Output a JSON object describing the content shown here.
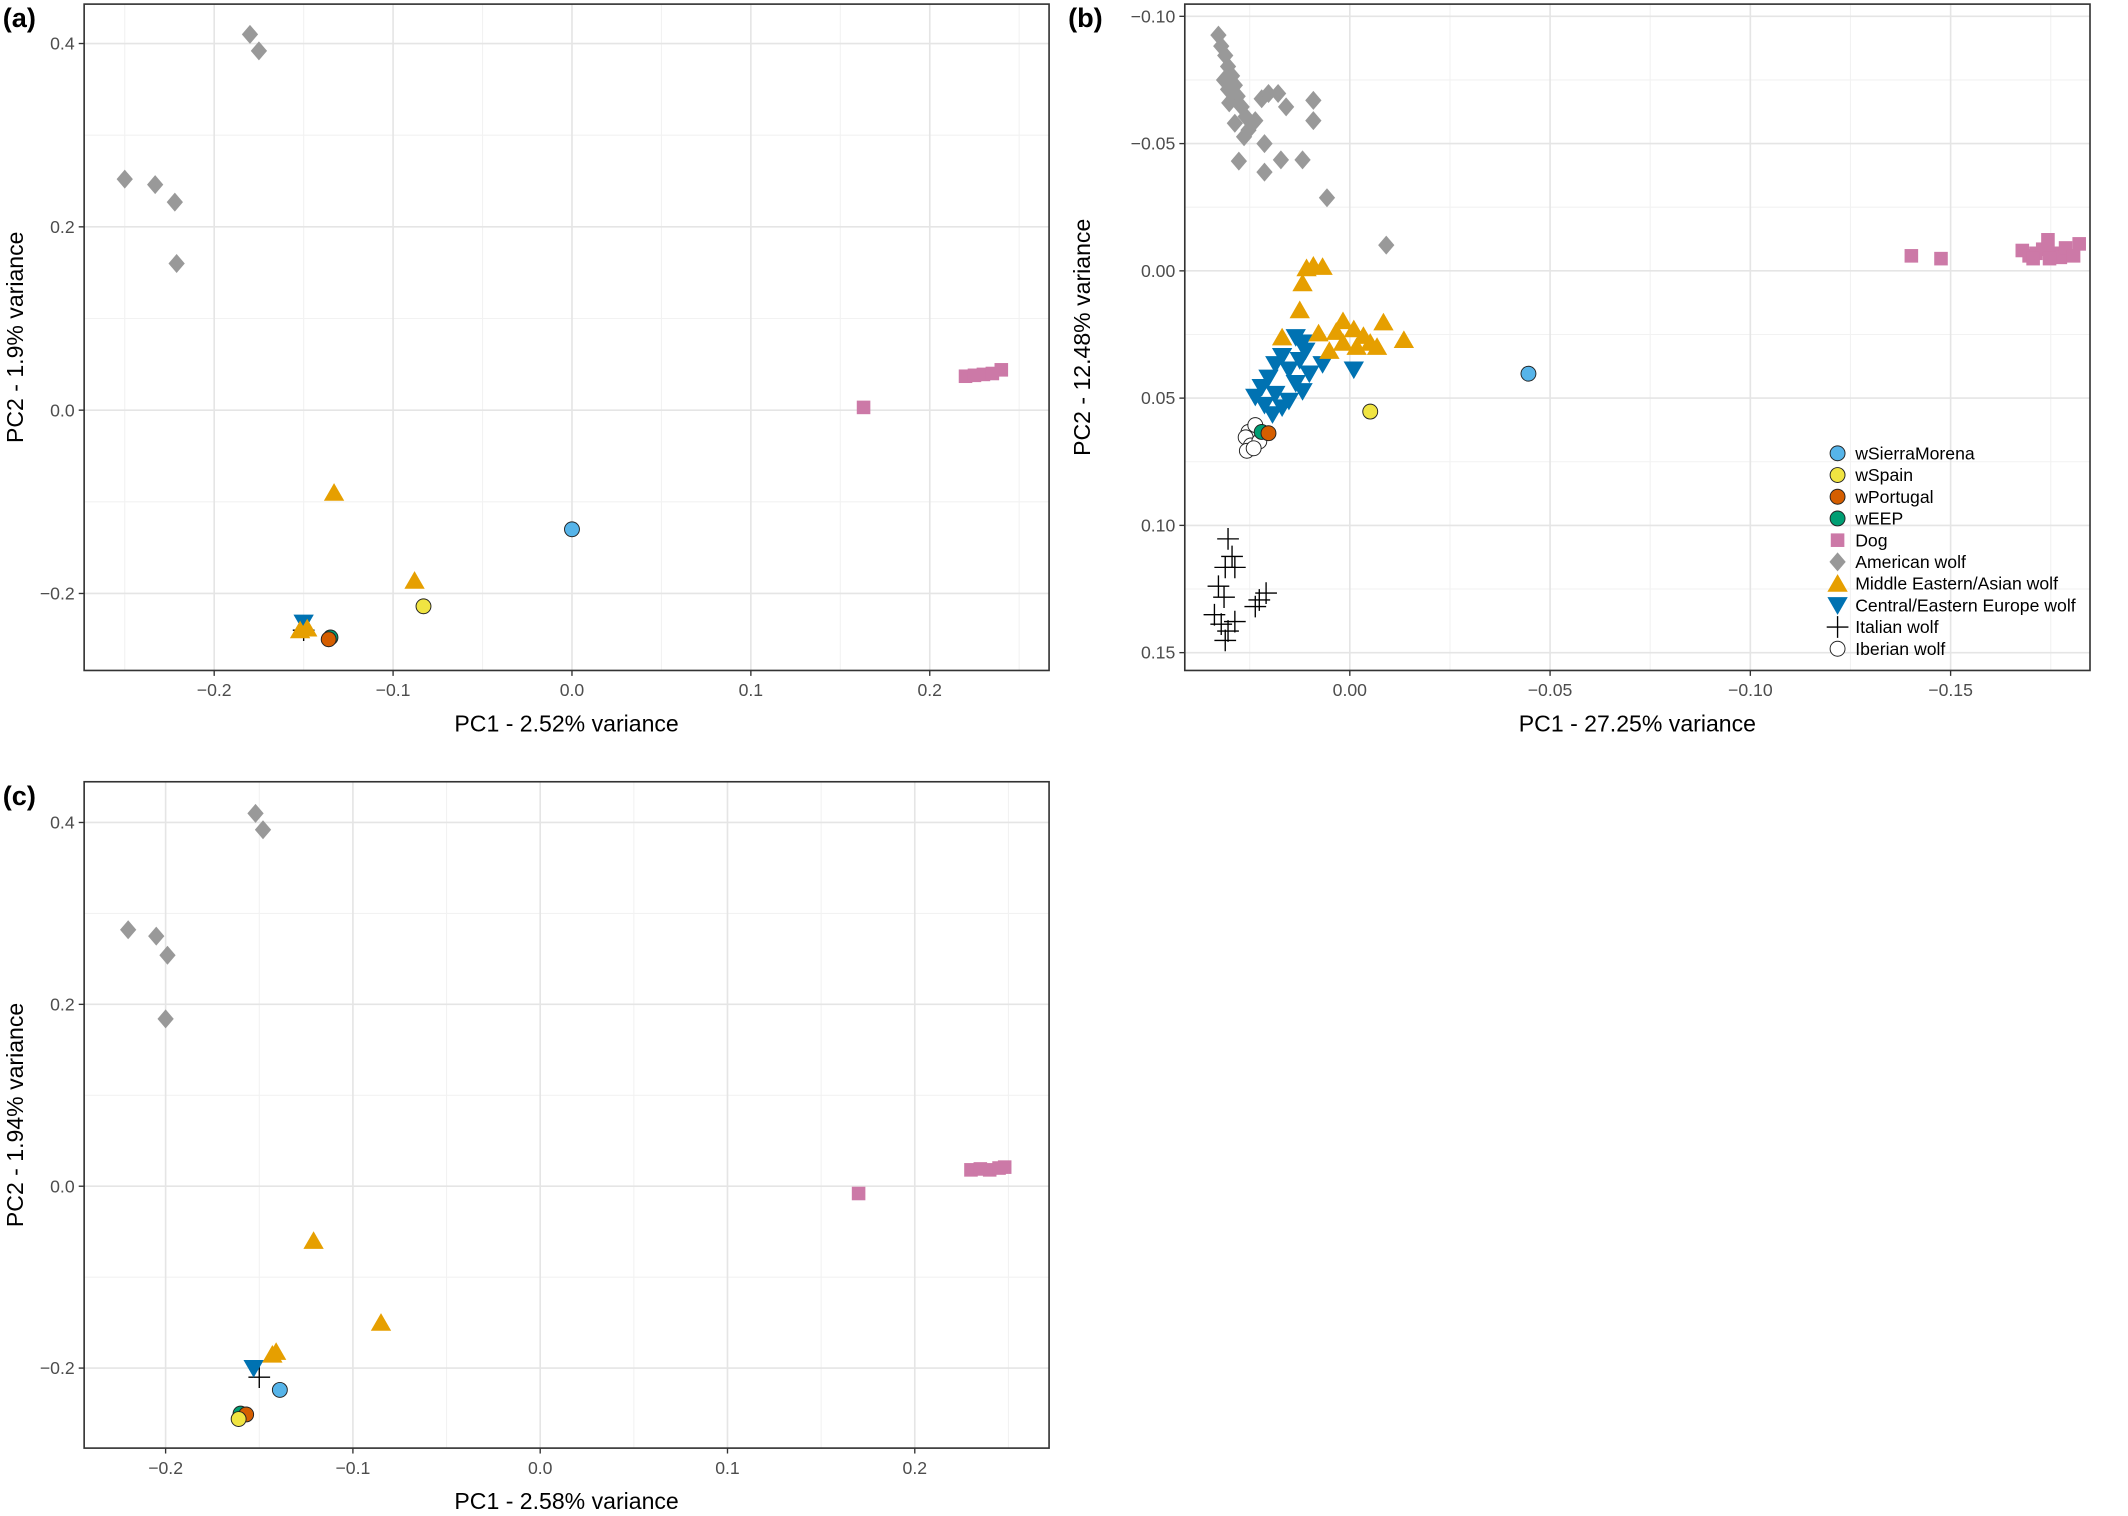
{
  "chart_data": [
    {
      "type": "scatter",
      "label": "(a)",
      "xlabel": "PC1 - 2.52% variance",
      "ylabel": "PC2 - 1.9% variance",
      "xlim": [
        -0.2727,
        0.2667
      ],
      "ylim": [
        -0.284,
        0.443
      ],
      "xticks": [
        {
          "value": -0.2,
          "label": "−0.2"
        },
        {
          "value": -0.1,
          "label": "−0.1"
        },
        {
          "value": 0,
          "label": "0.0"
        },
        0.1,
        0.2
      ],
      "yticks": [
        {
          "value": -0.2,
          "label": "−0.2"
        },
        {
          "value": 0,
          "label": "0.0"
        },
        0.2,
        0.4
      ],
      "grid": true,
      "series": [
        {
          "color": "#56b4e9",
          "marker": "circle",
          "x": [
            0.0
          ],
          "y": [
            -0.13
          ]
        },
        {
          "color": "#f0e442",
          "marker": "circle",
          "x": [
            -0.083
          ],
          "y": [
            -0.214
          ]
        },
        {
          "color": "#d55e00",
          "marker": "circle",
          "x": [
            -0.136
          ],
          "y": [
            -0.25
          ]
        },
        {
          "color": "#009e73",
          "marker": "circle",
          "x": [
            -0.135
          ],
          "y": [
            -0.248
          ]
        },
        {
          "color": "#cc79a7",
          "marker": "square",
          "x": [
            0.163,
            0.22,
            0.225,
            0.23,
            0.235,
            0.24
          ],
          "y": [
            0.003,
            0.037,
            0.038,
            0.039,
            0.04,
            0.044
          ]
        },
        {
          "color": "#999999",
          "marker": "diamond",
          "x": [
            -0.18,
            -0.175,
            -0.25,
            -0.233,
            -0.222,
            -0.221
          ],
          "y": [
            0.41,
            0.392,
            0.252,
            0.246,
            0.227,
            0.16
          ]
        },
        {
          "color": "#e69f00",
          "marker": "triangle-up",
          "x": [
            -0.133,
            -0.088,
            -0.152,
            -0.148
          ],
          "y": [
            -0.09,
            -0.186,
            -0.24,
            -0.238
          ]
        },
        {
          "color": "#0072b2",
          "marker": "triangle-down",
          "x": [
            -0.15
          ],
          "y": [
            -0.232
          ]
        },
        {
          "color": "#000000",
          "marker": "plus",
          "x": [
            -0.15
          ],
          "y": [
            -0.24
          ]
        }
      ]
    },
    {
      "type": "scatter",
      "label": "(b)",
      "xlabel": "PC1 - 27.25% variance",
      "ylabel": "PC2 - 12.48% variance",
      "xlim": [
        0.0412,
        -0.1848
      ],
      "ylim": [
        0.157,
        -0.1048
      ],
      "xticks": [
        {
          "value": 0,
          "label": "0.00"
        },
        {
          "value": -0.05,
          "label": "−0.05"
        },
        {
          "value": -0.1,
          "label": "−0.10"
        },
        {
          "value": -0.15,
          "label": "−0.15"
        }
      ],
      "yticks": [
        {
          "value": -0.1,
          "label": "−0.10"
        },
        {
          "value": -0.05,
          "label": "−0.05"
        },
        {
          "value": 0,
          "label": "0.00"
        },
        0.05,
        {
          "value": 0.1,
          "label": "0.10"
        },
        0.15
      ],
      "grid": true,
      "legend": "bottom-right",
      "series": [
        {
          "name": "wSierraMorena",
          "color": "#56b4e9",
          "marker": "circle",
          "x": [
            -0.0446
          ],
          "y": [
            0.0404
          ]
        },
        {
          "name": "wSpain",
          "color": "#f0e442",
          "marker": "circle",
          "x": [
            -0.0051
          ],
          "y": [
            0.0553
          ]
        },
        {
          "name": "wPortugal",
          "color": "#d55e00",
          "marker": "circle",
          "x": [
            0.0203
          ],
          "y": [
            0.0638
          ]
        },
        {
          "name": "wEEP",
          "color": "#009e73",
          "marker": "circle",
          "x": [
            0.022
          ],
          "y": [
            0.0633
          ]
        },
        {
          "name": "Dog",
          "color": "#cc79a7",
          "marker": "square",
          "x": [
            -0.1402,
            -0.1476,
            -0.1679,
            -0.1696,
            -0.1713,
            -0.173,
            -0.1743,
            -0.1757,
            -0.1774,
            -0.1787,
            -0.1807,
            -0.1821,
            -0.1706,
            -0.1747
          ],
          "y": [
            -0.0059,
            -0.0048,
            -0.008,
            -0.0059,
            -0.0069,
            -0.0085,
            -0.0122,
            -0.0069,
            -0.0053,
            -0.009,
            -0.0059,
            -0.0106,
            -0.0048,
            -0.0048
          ]
        },
        {
          "name": "American wolf",
          "color": "#999999",
          "marker": "diamond",
          "x": [
            0.0328,
            0.0321,
            0.0311,
            0.0304,
            0.0294,
            0.0287,
            0.028,
            0.027,
            0.026,
            0.0304,
            0.0287,
            0.0314,
            0.0253,
            0.022,
            0.0203,
            0.0179,
            0.0091,
            0.0159,
            0.0091,
            0.0213,
            0.0172,
            0.0118,
            0.0277,
            0.0213,
            0.0057,
            -0.0091,
            0.0264,
            0.0301,
            0.0236
          ],
          "y": [
            -0.0926,
            -0.0883,
            -0.0846,
            -0.0803,
            -0.0766,
            -0.0729,
            -0.0686,
            -0.0644,
            -0.0606,
            -0.0713,
            -0.058,
            -0.075,
            -0.0553,
            -0.0676,
            -0.0697,
            -0.0697,
            -0.067,
            -0.0644,
            -0.059,
            -0.05,
            -0.0436,
            -0.0436,
            -0.0431,
            -0.0388,
            -0.0287,
            -0.0101,
            -0.0527,
            -0.066,
            -0.059
          ]
        },
        {
          "name": "Middle Eastern/Asian wolf",
          "color": "#e69f00",
          "marker": "triangle-up",
          "x": [
            0.0108,
            0.0091,
            0.0068,
            0.0118,
            0.0125,
            0.0169,
            0.0078,
            0.0034,
            0.0017,
            -0.0017,
            -0.0051,
            -0.0084,
            -0.0135,
            -0.0068,
            -0.001,
            0.0051,
            0.0017,
            -0.0034
          ],
          "y": [
            -0.0011,
            -0.0021,
            -0.0016,
            0.0048,
            0.0154,
            0.0261,
            0.0245,
            0.0239,
            0.0282,
            0.0298,
            0.0282,
            0.0202,
            0.0271,
            0.0298,
            0.0229,
            0.0314,
            0.0197,
            0.0255
          ]
        },
        {
          "name": "Central/Eastern Europe wolf",
          "color": "#0072b2",
          "marker": "triangle-down",
          "x": [
            0.0135,
            0.0118,
            0.0111,
            0.0169,
            0.0186,
            0.0152,
            0.0203,
            0.022,
            0.0236,
            0.0186,
            0.0152,
            0.0118,
            0.0101,
            0.0125,
            0.0068,
            -0.001,
            0.0213,
            0.0169,
            0.0193,
            0.0135
          ],
          "y": [
            0.0261,
            0.0282,
            0.0314,
            0.0335,
            0.0367,
            0.0388,
            0.042,
            0.0457,
            0.0495,
            0.0484,
            0.0511,
            0.0473,
            0.0404,
            0.0351,
            0.0367,
            0.0388,
            0.0527,
            0.0537,
            0.0564,
            0.0441
          ]
        },
        {
          "name": "Italian wolf",
          "color": "#000000",
          "marker": "plus",
          "x": [
            0.0304,
            0.0294,
            0.0311,
            0.0287,
            0.0328,
            0.0314,
            0.0338,
            0.0321,
            0.0304,
            0.0311,
            0.0287,
            0.0226,
            0.0209,
            0.0236
          ],
          "y": [
            0.1053,
            0.1122,
            0.1165,
            0.1165,
            0.1239,
            0.1282,
            0.1351,
            0.1388,
            0.1415,
            0.1452,
            0.1378,
            0.1293,
            0.1266,
            0.1319
          ]
        },
        {
          "name": "Iberian wolf",
          "color": "#ffffff",
          "marker": "circle",
          "x": [
            0.0253,
            0.0236,
            0.026,
            0.0247,
            0.0226,
            0.0257,
            0.024
          ],
          "y": [
            0.0633,
            0.0606,
            0.0654,
            0.0686,
            0.067,
            0.0707,
            0.0697
          ]
        }
      ]
    },
    {
      "type": "scatter",
      "label": "(c)",
      "xlabel": "PC1 - 2.58% variance",
      "ylabel": "PC2 - 1.94% variance",
      "xlim": [
        -0.2435,
        0.2717
      ],
      "ylim": [
        -0.288,
        0.4448
      ],
      "xticks": [
        {
          "value": -0.2,
          "label": "−0.2"
        },
        {
          "value": -0.1,
          "label": "−0.1"
        },
        {
          "value": 0,
          "label": "0.0"
        },
        0.1,
        0.2
      ],
      "yticks": [
        {
          "value": -0.2,
          "label": "−0.2"
        },
        {
          "value": 0,
          "label": "0.0"
        },
        0.2,
        0.4
      ],
      "grid": true,
      "series": [
        {
          "color": "#56b4e9",
          "marker": "circle",
          "x": [
            -0.139
          ],
          "y": [
            -0.224
          ]
        },
        {
          "color": "#f0e442",
          "marker": "circle",
          "x": [
            -0.161
          ],
          "y": [
            -0.256
          ]
        },
        {
          "color": "#d55e00",
          "marker": "circle",
          "x": [
            -0.157
          ],
          "y": [
            -0.251
          ]
        },
        {
          "color": "#009e73",
          "marker": "circle",
          "x": [
            -0.16
          ],
          "y": [
            -0.25
          ]
        },
        {
          "color": "#cc79a7",
          "marker": "square",
          "x": [
            0.17,
            0.23,
            0.235,
            0.24,
            0.245,
            0.248
          ],
          "y": [
            -0.008,
            0.018,
            0.019,
            0.018,
            0.02,
            0.021
          ]
        },
        {
          "color": "#999999",
          "marker": "diamond",
          "x": [
            -0.152,
            -0.148,
            -0.22,
            -0.205,
            -0.199,
            -0.2
          ],
          "y": [
            0.41,
            0.392,
            0.282,
            0.275,
            0.254,
            0.184
          ]
        },
        {
          "color": "#e69f00",
          "marker": "triangle-up",
          "x": [
            -0.121,
            -0.085,
            -0.141,
            -0.143
          ],
          "y": [
            -0.06,
            -0.15,
            -0.182,
            -0.185
          ]
        },
        {
          "color": "#0072b2",
          "marker": "triangle-down",
          "x": [
            -0.153
          ],
          "y": [
            -0.2
          ]
        },
        {
          "color": "#000000",
          "marker": "plus",
          "x": [
            -0.15
          ],
          "y": [
            -0.21
          ]
        }
      ]
    }
  ]
}
